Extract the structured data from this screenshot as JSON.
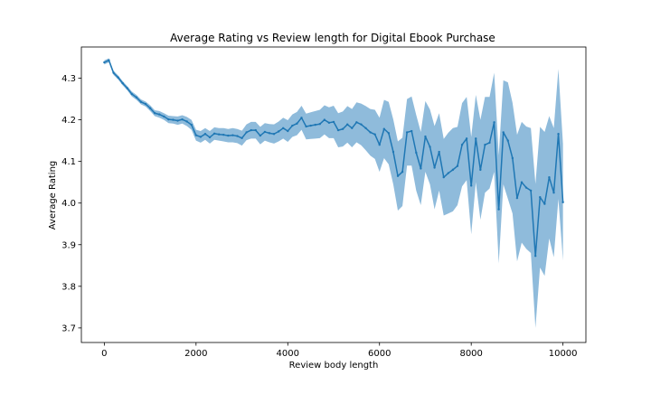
{
  "chart_data": {
    "type": "line",
    "title": "Average Rating vs Review length for Digital Ebook Purchase",
    "xlabel": "Review body length",
    "ylabel": "Average Rating",
    "xlim": [
      -500,
      10500
    ],
    "ylim": [
      3.665,
      4.375
    ],
    "xticks": [
      0,
      2000,
      4000,
      6000,
      8000,
      10000
    ],
    "yticks": [
      3.7,
      3.8,
      3.9,
      4.0,
      4.1,
      4.2,
      4.3
    ],
    "grid": false,
    "colors": {
      "line": "#1f77b4",
      "band": "#8fbbdb"
    },
    "series": [
      {
        "x": [
          0,
          100,
          200,
          300,
          400,
          500,
          600,
          700,
          800,
          900,
          1000,
          1100,
          1200,
          1300,
          1400,
          1500,
          1600,
          1700,
          1800,
          1900,
          2000,
          2100,
          2200,
          2300,
          2400,
          2500,
          2600,
          2700,
          2800,
          2900,
          3000,
          3100,
          3200,
          3300,
          3400,
          3500,
          3600,
          3700,
          3800,
          3900,
          4000,
          4100,
          4200,
          4300,
          4400,
          4500,
          4600,
          4700,
          4800,
          4900,
          5000,
          5100,
          5200,
          5300,
          5400,
          5500,
          5600,
          5700,
          5800,
          5900,
          6000,
          6100,
          6200,
          6300,
          6400,
          6500,
          6600,
          6700,
          6800,
          6900,
          7000,
          7100,
          7200,
          7300,
          7400,
          7500,
          7600,
          7700,
          7800,
          7900,
          8000,
          8100,
          8200,
          8300,
          8400,
          8500,
          8600,
          8700,
          8800,
          8900,
          9000,
          9100,
          9200,
          9300,
          9400,
          9500,
          9600,
          9700,
          9800,
          9900,
          10000
        ],
        "y": [
          4.338,
          4.343,
          4.313,
          4.302,
          4.288,
          4.276,
          4.262,
          4.254,
          4.243,
          4.238,
          4.228,
          4.216,
          4.213,
          4.208,
          4.201,
          4.2,
          4.198,
          4.201,
          4.196,
          4.188,
          4.163,
          4.159,
          4.166,
          4.158,
          4.167,
          4.165,
          4.164,
          4.162,
          4.163,
          4.161,
          4.156,
          4.17,
          4.175,
          4.175,
          4.162,
          4.171,
          4.168,
          4.166,
          4.172,
          4.18,
          4.173,
          4.186,
          4.191,
          4.205,
          4.184,
          4.186,
          4.188,
          4.19,
          4.2,
          4.193,
          4.195,
          4.175,
          4.178,
          4.189,
          4.18,
          4.194,
          4.189,
          4.18,
          4.17,
          4.165,
          4.14,
          4.178,
          4.168,
          4.123,
          4.065,
          4.075,
          4.17,
          4.173,
          4.121,
          4.083,
          4.16,
          4.135,
          4.085,
          4.123,
          4.062,
          4.072,
          4.08,
          4.089,
          4.14,
          4.155,
          4.042,
          4.155,
          4.08,
          4.14,
          4.145,
          4.194,
          3.985,
          4.17,
          4.15,
          4.108,
          4.012,
          4.05,
          4.037,
          4.03,
          3.873,
          4.014,
          3.998,
          4.062,
          4.025,
          4.166,
          4.002
        ],
        "lower": [
          4.333,
          4.338,
          4.308,
          4.297,
          4.283,
          4.271,
          4.256,
          4.248,
          4.237,
          4.232,
          4.221,
          4.209,
          4.205,
          4.2,
          4.192,
          4.191,
          4.188,
          4.191,
          4.185,
          4.176,
          4.15,
          4.145,
          4.152,
          4.143,
          4.152,
          4.15,
          4.148,
          4.146,
          4.146,
          4.144,
          4.138,
          4.151,
          4.155,
          4.155,
          4.141,
          4.15,
          4.146,
          4.143,
          4.148,
          4.155,
          4.147,
          4.159,
          4.163,
          4.176,
          4.153,
          4.154,
          4.155,
          4.156,
          4.165,
          4.156,
          4.156,
          4.134,
          4.136,
          4.145,
          4.134,
          4.146,
          4.139,
          4.127,
          4.114,
          4.106,
          4.075,
          4.108,
          4.093,
          4.045,
          3.982,
          3.993,
          4.09,
          4.09,
          4.03,
          3.995,
          4.075,
          4.045,
          3.985,
          4.03,
          3.97,
          3.975,
          3.98,
          3.995,
          4.04,
          4.055,
          3.925,
          4.05,
          3.96,
          4.025,
          4.035,
          4.075,
          3.855,
          4.045,
          4.01,
          3.975,
          3.86,
          3.905,
          3.89,
          3.88,
          3.7,
          3.845,
          3.825,
          3.915,
          3.87,
          4.01,
          3.862
        ],
        "upper": [
          4.343,
          4.348,
          4.318,
          4.307,
          4.293,
          4.281,
          4.268,
          4.26,
          4.249,
          4.244,
          4.235,
          4.223,
          4.221,
          4.216,
          4.21,
          4.209,
          4.208,
          4.211,
          4.207,
          4.2,
          4.176,
          4.173,
          4.18,
          4.173,
          4.182,
          4.18,
          4.18,
          4.178,
          4.18,
          4.178,
          4.174,
          4.189,
          4.195,
          4.195,
          4.183,
          4.192,
          4.19,
          4.189,
          4.196,
          4.205,
          4.199,
          4.213,
          4.219,
          4.234,
          4.215,
          4.218,
          4.221,
          4.224,
          4.235,
          4.23,
          4.234,
          4.216,
          4.22,
          4.233,
          4.226,
          4.242,
          4.239,
          4.233,
          4.226,
          4.224,
          4.205,
          4.248,
          4.243,
          4.201,
          4.148,
          4.157,
          4.25,
          4.256,
          4.212,
          4.171,
          4.245,
          4.225,
          4.185,
          4.216,
          4.154,
          4.169,
          4.18,
          4.183,
          4.24,
          4.255,
          4.159,
          4.26,
          4.2,
          4.255,
          4.255,
          4.313,
          4.115,
          4.295,
          4.29,
          4.241,
          4.164,
          4.195,
          4.184,
          4.18,
          4.046,
          4.183,
          4.171,
          4.209,
          4.18,
          4.322,
          4.142
        ]
      }
    ]
  }
}
